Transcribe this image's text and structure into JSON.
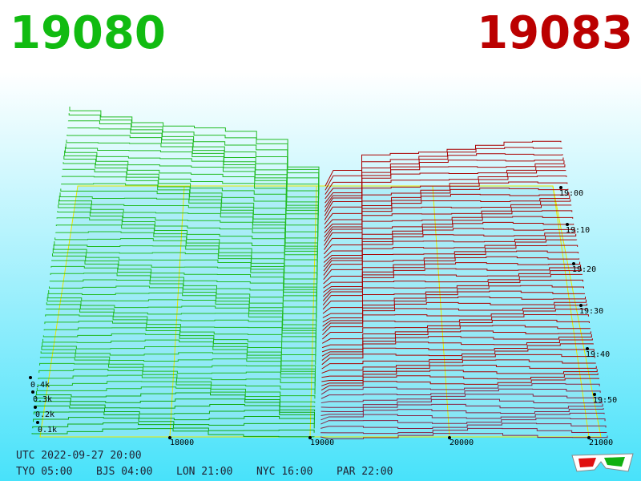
{
  "header": {
    "bid": "19080",
    "ask": "19083"
  },
  "price_axis": [
    "18000",
    "19000",
    "20000",
    "21000"
  ],
  "depth_axis": [
    "0.4k",
    "0.3k",
    "0.2k",
    "0.1k"
  ],
  "time_axis": [
    "19:00",
    "19:10",
    "19:20",
    "19:30",
    "19:40",
    "19:50"
  ],
  "footer": {
    "utc": "UTC 2022-09-27 20:00",
    "zones": [
      "TYO 05:00",
      "BJS 04:00",
      "LON 21:00",
      "NYC 16:00",
      "PAR 22:00"
    ]
  }
}
